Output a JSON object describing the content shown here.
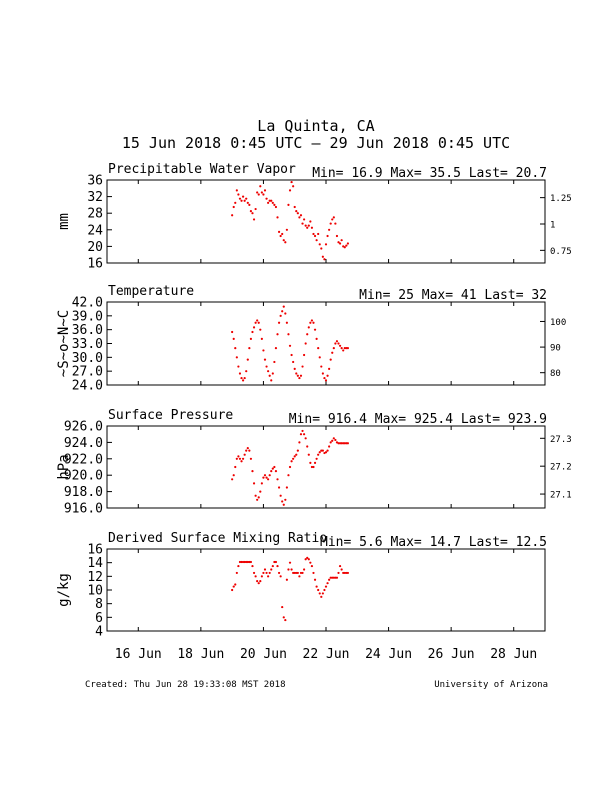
{
  "title": "La Quinta, CA",
  "subtitle": "15 Jun 2018 0:45 UTC – 29 Jun 2018 0:45 UTC",
  "footer": {
    "created": "Created: Thu Jun 28 19:33:08 MST 2018",
    "credit": "University of Arizona"
  },
  "colors": {
    "points": "#ee0000",
    "axes": "#000000",
    "background": "#ffffff"
  },
  "x_axis": {
    "range_days": [
      15.0,
      29.0
    ],
    "tick_days": [
      16,
      18,
      20,
      22,
      24,
      26,
      28
    ],
    "tick_labels": [
      "16 Jun",
      "18 Jun",
      "20 Jun",
      "22 Jun",
      "24 Jun",
      "26 Jun",
      "28 Jun"
    ]
  },
  "chart_data": [
    {
      "type": "scatter",
      "title": "Precipitable Water Vapor",
      "stats": "Min= 16.9 Max= 35.5 Last= 20.7",
      "ylabel": "mm",
      "ylim": [
        16,
        36
      ],
      "yticks": [
        16,
        20,
        24,
        28,
        32,
        36
      ],
      "right_ticks": [
        {
          "label": "1.25",
          "value": 31.75
        },
        {
          "label": "1",
          "value": 25.4
        },
        {
          "label": "0.75",
          "value": 19.05
        }
      ],
      "series": [
        {
          "x": [
            19.0,
            19.05,
            19.1,
            19.15,
            19.2,
            19.25,
            19.3,
            19.35,
            19.4,
            19.45,
            19.5,
            19.55,
            19.6,
            19.65,
            19.7,
            19.75,
            19.8,
            19.85,
            19.9,
            19.95,
            20.0,
            20.05,
            20.1,
            20.15,
            20.2,
            20.25,
            20.3,
            20.35,
            20.4,
            20.45,
            20.5,
            20.55,
            20.6,
            20.65,
            20.7,
            20.75,
            20.8,
            20.85,
            20.9,
            20.95,
            21.0,
            21.05,
            21.1,
            21.15,
            21.2,
            21.25,
            21.3,
            21.35,
            21.4,
            21.45,
            21.5,
            21.55,
            21.6,
            21.65,
            21.7,
            21.75,
            21.8,
            21.85,
            21.9,
            21.95,
            22.0,
            22.05,
            22.1,
            22.15,
            22.2,
            22.25,
            22.3,
            22.35,
            22.4,
            22.45,
            22.5,
            22.55,
            22.6,
            22.65,
            22.7
          ],
          "y": [
            27.5,
            29.5,
            30.5,
            33.5,
            32.5,
            31.5,
            31.0,
            32.0,
            31.0,
            31.5,
            30.5,
            30.0,
            28.5,
            28.0,
            26.5,
            29.0,
            33.0,
            32.5,
            34.5,
            33.0,
            32.5,
            33.5,
            31.5,
            30.5,
            31.0,
            31.0,
            30.5,
            30.0,
            29.5,
            27.0,
            23.5,
            22.5,
            23.0,
            21.5,
            21.0,
            24.0,
            30.0,
            33.5,
            35.5,
            34.5,
            29.5,
            28.5,
            28.0,
            27.0,
            27.5,
            25.5,
            26.5,
            25.0,
            24.5,
            25.0,
            26.0,
            24.5,
            23.0,
            22.5,
            21.5,
            23.0,
            20.5,
            19.5,
            17.5,
            16.9,
            20.5,
            22.5,
            24.0,
            25.5,
            26.5,
            27.0,
            25.5,
            22.5,
            21.0,
            20.7,
            21.5,
            20.0,
            19.8,
            20.2,
            20.7
          ]
        }
      ]
    },
    {
      "type": "scatter",
      "title": "Temperature",
      "stats": "Min= 25 Max= 41 Last= 32",
      "ylabel": "~S~o~N~C",
      "ylim": [
        24,
        42
      ],
      "yticks": [
        24.0,
        27.0,
        30.0,
        33.0,
        36.0,
        39.0,
        42.0
      ],
      "ytick_labels": [
        "24.0",
        "27.0",
        "30.0",
        "33.0",
        "36.0",
        "39.0",
        "42.0"
      ],
      "right_ticks": [
        {
          "label": "100",
          "value": 37.78
        },
        {
          "label": "90",
          "value": 32.22
        },
        {
          "label": "80",
          "value": 26.67
        }
      ],
      "series": [
        {
          "x": [
            19.0,
            19.05,
            19.1,
            19.15,
            19.2,
            19.25,
            19.3,
            19.35,
            19.4,
            19.45,
            19.5,
            19.55,
            19.6,
            19.65,
            19.7,
            19.75,
            19.8,
            19.85,
            19.9,
            19.95,
            20.0,
            20.05,
            20.1,
            20.15,
            20.2,
            20.25,
            20.3,
            20.35,
            20.4,
            20.45,
            20.5,
            20.55,
            20.6,
            20.65,
            20.7,
            20.75,
            20.8,
            20.85,
            20.9,
            20.95,
            21.0,
            21.05,
            21.1,
            21.15,
            21.2,
            21.25,
            21.3,
            21.35,
            21.4,
            21.45,
            21.5,
            21.55,
            21.6,
            21.65,
            21.7,
            21.75,
            21.8,
            21.85,
            21.9,
            21.95,
            22.0,
            22.05,
            22.1,
            22.15,
            22.2,
            22.25,
            22.3,
            22.35,
            22.4,
            22.45,
            22.5,
            22.55,
            22.6,
            22.65,
            22.7
          ],
          "y": [
            35.5,
            34.0,
            32.0,
            30.0,
            28.0,
            26.5,
            25.5,
            25.0,
            25.5,
            27.0,
            29.5,
            32.0,
            34.0,
            35.5,
            36.5,
            37.5,
            38.0,
            37.5,
            36.0,
            34.0,
            31.5,
            29.5,
            28.0,
            27.0,
            26.0,
            25.0,
            26.5,
            29.0,
            32.0,
            35.0,
            37.5,
            39.0,
            40.0,
            41.0,
            39.5,
            37.5,
            35.0,
            32.5,
            30.5,
            29.0,
            27.5,
            26.5,
            26.0,
            25.5,
            26.0,
            28.0,
            30.5,
            33.0,
            35.0,
            36.5,
            37.5,
            38.0,
            37.5,
            36.0,
            34.0,
            32.0,
            30.0,
            28.0,
            26.5,
            25.5,
            25.0,
            26.0,
            27.5,
            29.5,
            31.0,
            32.0,
            33.0,
            33.5,
            33.0,
            32.5,
            32.0,
            31.5,
            32.0,
            32.0,
            32.0
          ]
        }
      ]
    },
    {
      "type": "scatter",
      "title": "Surface Pressure",
      "stats": "Min= 916.4 Max= 925.4 Last= 923.9",
      "ylabel": "hPa",
      "ylim": [
        916,
        926
      ],
      "yticks": [
        916.0,
        918.0,
        920.0,
        922.0,
        924.0,
        926.0
      ],
      "ytick_labels": [
        "916.0",
        "918.0",
        "920.0",
        "922.0",
        "924.0",
        "926.0"
      ],
      "right_ticks": [
        {
          "label": "27.3",
          "value": 924.5
        },
        {
          "label": "27.2",
          "value": 921.1
        },
        {
          "label": "27.1",
          "value": 917.7
        }
      ],
      "series": [
        {
          "x": [
            19.0,
            19.05,
            19.1,
            19.15,
            19.2,
            19.25,
            19.3,
            19.35,
            19.4,
            19.45,
            19.5,
            19.55,
            19.6,
            19.65,
            19.7,
            19.75,
            19.8,
            19.85,
            19.9,
            19.95,
            20.0,
            20.05,
            20.1,
            20.15,
            20.2,
            20.25,
            20.3,
            20.35,
            20.4,
            20.45,
            20.5,
            20.55,
            20.6,
            20.65,
            20.7,
            20.75,
            20.8,
            20.85,
            20.9,
            20.95,
            21.0,
            21.05,
            21.1,
            21.15,
            21.2,
            21.25,
            21.3,
            21.35,
            21.4,
            21.45,
            21.5,
            21.55,
            21.6,
            21.65,
            21.7,
            21.75,
            21.8,
            21.85,
            21.9,
            21.95,
            22.0,
            22.05,
            22.1,
            22.15,
            22.2,
            22.25,
            22.3,
            22.35,
            22.4,
            22.45,
            22.5,
            22.55,
            22.6,
            22.65,
            22.7
          ],
          "y": [
            919.5,
            920.0,
            921.0,
            922.0,
            922.3,
            922.0,
            921.7,
            922.0,
            922.5,
            923.0,
            923.3,
            923.0,
            922.0,
            920.5,
            919.0,
            917.5,
            917.0,
            917.3,
            918.0,
            919.0,
            919.7,
            920.0,
            919.7,
            919.5,
            920.0,
            920.5,
            920.8,
            921.0,
            920.5,
            919.5,
            918.5,
            917.5,
            916.8,
            916.4,
            917.0,
            918.5,
            920.0,
            921.0,
            921.7,
            922.0,
            922.3,
            922.5,
            923.0,
            924.0,
            925.0,
            925.4,
            925.0,
            924.5,
            923.5,
            922.5,
            921.5,
            921.0,
            921.0,
            921.5,
            922.0,
            922.5,
            922.8,
            923.0,
            923.0,
            922.7,
            922.8,
            923.0,
            923.5,
            924.0,
            924.2,
            924.5,
            924.3,
            924.0,
            923.9,
            923.9,
            923.9,
            923.9,
            923.9,
            923.9,
            923.9
          ]
        }
      ]
    },
    {
      "type": "scatter",
      "title": "Derived Surface Mixing Ratio",
      "stats": "Min= 5.6 Max= 14.7 Last= 12.5",
      "ylabel": "g/kg",
      "ylim": [
        4,
        16
      ],
      "yticks": [
        4,
        6,
        8,
        10,
        12,
        14,
        16
      ],
      "series": [
        {
          "x": [
            19.0,
            19.05,
            19.1,
            19.15,
            19.2,
            19.25,
            19.3,
            19.35,
            19.4,
            19.45,
            19.5,
            19.55,
            19.6,
            19.65,
            19.7,
            19.75,
            19.8,
            19.85,
            19.9,
            19.95,
            20.0,
            20.05,
            20.1,
            20.15,
            20.2,
            20.25,
            20.3,
            20.35,
            20.4,
            20.45,
            20.5,
            20.55,
            20.6,
            20.65,
            20.7,
            20.75,
            20.8,
            20.85,
            20.9,
            20.95,
            21.0,
            21.05,
            21.1,
            21.15,
            21.2,
            21.25,
            21.3,
            21.35,
            21.4,
            21.45,
            21.5,
            21.55,
            21.6,
            21.65,
            21.7,
            21.75,
            21.8,
            21.85,
            21.9,
            21.95,
            22.0,
            22.05,
            22.1,
            22.15,
            22.2,
            22.25,
            22.3,
            22.35,
            22.4,
            22.45,
            22.5,
            22.55,
            22.6,
            22.65,
            22.7
          ],
          "y": [
            10.0,
            10.5,
            10.8,
            12.5,
            13.5,
            14.1,
            14.1,
            14.1,
            14.1,
            14.1,
            14.1,
            14.1,
            14.1,
            13.5,
            12.5,
            12.0,
            11.3,
            11.0,
            11.3,
            12.0,
            12.5,
            13.0,
            12.5,
            12.0,
            12.5,
            13.0,
            13.5,
            14.1,
            14.1,
            13.5,
            12.5,
            12.0,
            7.5,
            6.0,
            5.6,
            11.5,
            13.0,
            14.0,
            13.0,
            12.5,
            12.5,
            12.5,
            12.5,
            12.0,
            12.5,
            12.5,
            13.0,
            14.5,
            14.7,
            14.5,
            14.0,
            13.5,
            12.5,
            11.5,
            10.5,
            10.0,
            9.5,
            9.0,
            9.5,
            10.0,
            10.5,
            11.0,
            11.5,
            11.8,
            11.8,
            11.8,
            11.8,
            11.8,
            12.5,
            13.5,
            13.0,
            12.5,
            12.5,
            12.5,
            12.5
          ]
        }
      ]
    }
  ]
}
